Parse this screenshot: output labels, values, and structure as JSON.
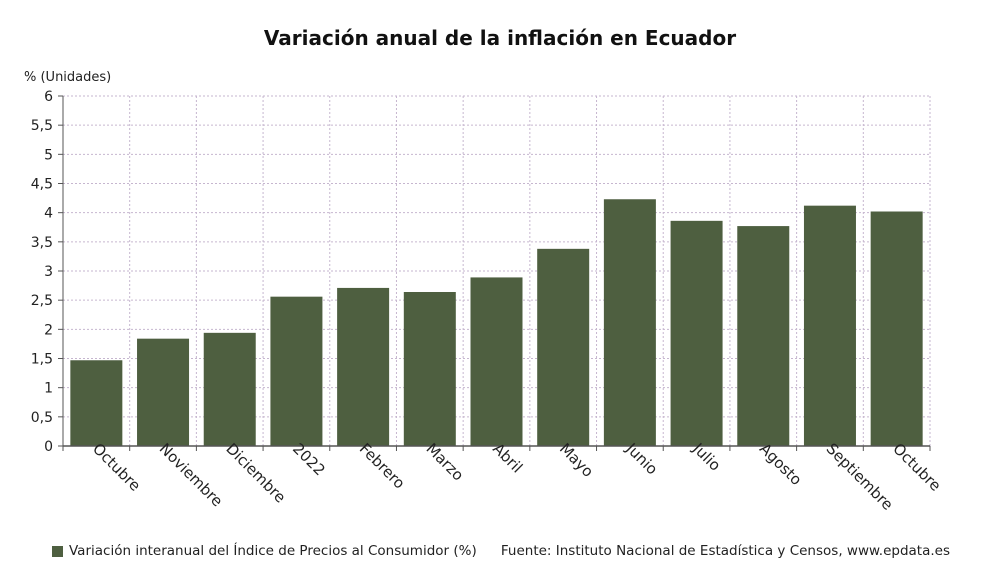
{
  "chart_data": {
    "type": "bar",
    "title": "Variación anual de la inflación en Ecuador",
    "ylabel": "% (Unidades)",
    "xlabel": "",
    "categories": [
      "Octubre",
      "Noviembre",
      "Diciembre",
      "2022",
      "Febrero",
      "Marzo",
      "Abril",
      "Mayo",
      "Junio",
      "Julio",
      "Agosto",
      "Septiembre",
      "Octubre"
    ],
    "series": [
      {
        "name": "Variación interanual del Índice de Precios al Consumidor (%)",
        "values": [
          1.47,
          1.84,
          1.94,
          2.56,
          2.71,
          2.64,
          2.89,
          3.38,
          4.23,
          3.86,
          3.77,
          4.12,
          4.02
        ],
        "color": "#4e5f40"
      }
    ],
    "ylim": [
      0,
      6
    ],
    "yticks": [
      "0",
      "0,5",
      "1",
      "1,5",
      "2",
      "2,5",
      "3",
      "3,5",
      "4",
      "4,5",
      "5",
      "5,5",
      "6"
    ],
    "grid": true,
    "legend_position": "bottom-left",
    "source": "Fuente: Instituto Nacional de Estadística y Censos, www.epdata.es"
  }
}
